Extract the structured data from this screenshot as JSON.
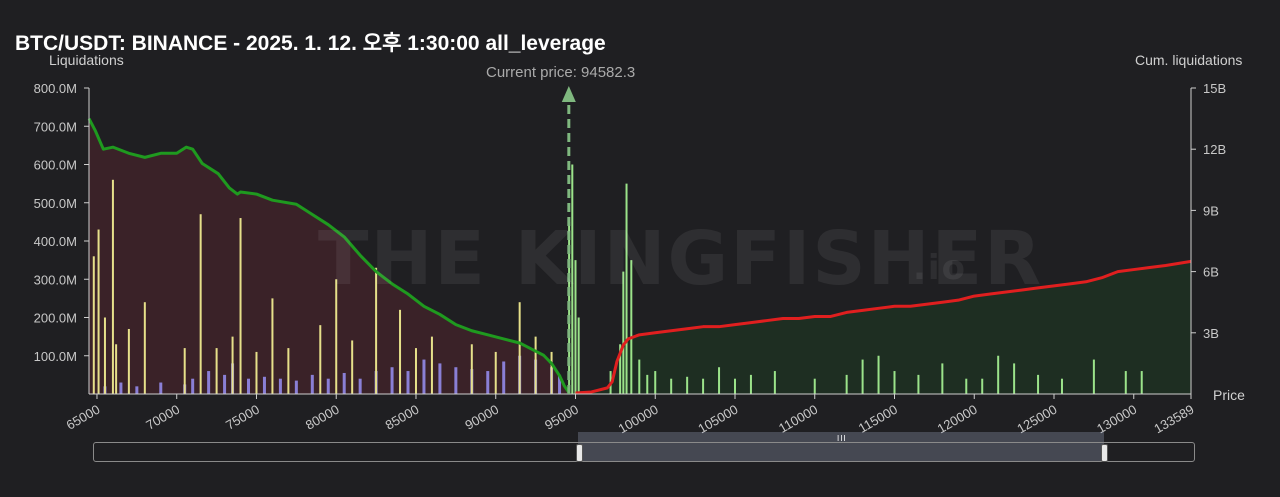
{
  "header": {
    "title": "BTC/USDT: BINANCE - 2025. 1. 12. 오후 1:30:00 all_leverage"
  },
  "annotation": {
    "current_price": "Current price: 94582.3"
  },
  "watermark": {
    "text": "THE KINGFISHER",
    "suffix": ".io"
  },
  "colors": {
    "short_bar": "#e6e08a",
    "long_bar": "#8a7fd6",
    "right_bar": "#9be38a",
    "cum_left_line": "#1f9a1f",
    "cum_right_line": "#e01f1f",
    "fill_left": "#3a2228",
    "fill_right": "#1e2e22",
    "price_marker": "#7fb87f"
  },
  "chart_data": {
    "type": "bar",
    "title": "BTC/USDT: BINANCE - 2025. 1. 12. 오후 1:30:00 all_leverage",
    "ylabel": "Liquidations",
    "y2label": "Cum. liquidations",
    "xlabel": "Price",
    "xlim": [
      64500,
      133589
    ],
    "ylim": [
      0,
      800000000
    ],
    "y2lim": [
      0,
      15000000000
    ],
    "x_ticks": [
      "65000",
      "70000",
      "75000",
      "80000",
      "85000",
      "90000",
      "95000",
      "100000",
      "105000",
      "110000",
      "115000",
      "120000",
      "125000",
      "130000",
      "133589"
    ],
    "y_ticks": [
      "100.0M",
      "200.0M",
      "300.0M",
      "400.0M",
      "500.0M",
      "600.0M",
      "700.0M",
      "800.0M"
    ],
    "y2_ticks": [
      "3B",
      "6B",
      "9B",
      "12B",
      "15B"
    ],
    "current_price": 94582.3,
    "cum_left": {
      "name": "cum_below",
      "x": [
        64500,
        64900,
        65400,
        66000,
        67000,
        68000,
        69000,
        70000,
        70600,
        71000,
        71600,
        72600,
        73300,
        73800,
        74000,
        75000,
        76000,
        77500,
        78500,
        79500,
        80500,
        81500,
        82500,
        83500,
        84500,
        85500,
        86500,
        87500,
        88500,
        89500,
        90500,
        91500,
        92000,
        92500,
        93000,
        93500,
        94000,
        94300,
        94582
      ],
      "values": [
        13500000000,
        12900000000,
        12000000000,
        12100000000,
        11800000000,
        11600000000,
        11800000000,
        11800000000,
        12100000000,
        12000000000,
        11300000000,
        10800000000,
        10100000000,
        9800000000,
        9900000000,
        9800000000,
        9500000000,
        9300000000,
        8800000000,
        8300000000,
        7700000000,
        6800000000,
        6000000000,
        5400000000,
        4900000000,
        4300000000,
        3900000000,
        3400000000,
        3100000000,
        2900000000,
        2700000000,
        2500000000,
        2300000000,
        2100000000,
        1900000000,
        1500000000,
        900000000,
        400000000,
        80000000
      ]
    },
    "cum_right": {
      "name": "cum_above",
      "x": [
        95000,
        96000,
        97000,
        97300,
        97600,
        98000,
        98300,
        99000,
        100000,
        101000,
        102000,
        103000,
        104000,
        105000,
        106000,
        107000,
        108000,
        109000,
        110000,
        111000,
        112000,
        113000,
        114000,
        115000,
        116000,
        117000,
        118000,
        119000,
        120000,
        121000,
        122000,
        123000,
        124000,
        125000,
        126000,
        127000,
        128000,
        129000,
        130000,
        131000,
        132000,
        133589
      ],
      "values": [
        50000000,
        100000000,
        300000000,
        600000000,
        1600000000,
        2400000000,
        2700000000,
        2900000000,
        3000000000,
        3100000000,
        3200000000,
        3300000000,
        3300000000,
        3400000000,
        3500000000,
        3600000000,
        3700000000,
        3700000000,
        3800000000,
        3800000000,
        4000000000,
        4100000000,
        4200000000,
        4300000000,
        4300000000,
        4400000000,
        4500000000,
        4600000000,
        4800000000,
        4900000000,
        5000000000,
        5100000000,
        5200000000,
        5300000000,
        5400000000,
        5500000000,
        5700000000,
        6000000000,
        6100000000,
        6200000000,
        6300000000,
        6500000000
      ]
    },
    "bars_short": {
      "name": "short_liq",
      "x": [
        64800,
        65100,
        65500,
        66000,
        66200,
        67000,
        68000,
        70500,
        71500,
        72500,
        73500,
        74000,
        75000,
        76000,
        77000,
        79000,
        80000,
        81000,
        82500,
        84000,
        85000,
        86000,
        88500,
        90000,
        91500,
        92500,
        93500
      ],
      "values": [
        360000000,
        430000000,
        200000000,
        560000000,
        130000000,
        170000000,
        240000000,
        120000000,
        470000000,
        120000000,
        150000000,
        460000000,
        110000000,
        250000000,
        120000000,
        180000000,
        300000000,
        140000000,
        330000000,
        220000000,
        120000000,
        150000000,
        130000000,
        110000000,
        240000000,
        150000000,
        110000000
      ]
    },
    "bars_long": {
      "name": "long_liq",
      "x": [
        65500,
        66500,
        67500,
        69000,
        70500,
        71000,
        72000,
        73000,
        73500,
        74500,
        75500,
        76500,
        77500,
        78500,
        79500,
        80500,
        81500,
        82500,
        83500,
        84500,
        85500,
        86500,
        87500,
        88500,
        89500,
        90500,
        91500,
        92500,
        93500,
        94000
      ],
      "values": [
        20000000,
        30000000,
        20000000,
        30000000,
        25000000,
        40000000,
        60000000,
        50000000,
        80000000,
        40000000,
        45000000,
        40000000,
        35000000,
        50000000,
        40000000,
        55000000,
        40000000,
        60000000,
        70000000,
        60000000,
        90000000,
        80000000,
        70000000,
        65000000,
        60000000,
        85000000,
        100000000,
        90000000,
        70000000,
        50000000
      ]
    },
    "bars_right": {
      "name": "short_above",
      "x": [
        94600,
        94800,
        95000,
        95200,
        97200,
        97800,
        98000,
        98200,
        98500,
        99000,
        99500,
        100000,
        101000,
        102000,
        103000,
        104000,
        105000,
        106000,
        107500,
        110000,
        112000,
        113000,
        114000,
        115000,
        116500,
        118000,
        119500,
        120500,
        121500,
        122500,
        124000,
        125500,
        127500,
        129500,
        130500
      ],
      "values": [
        450000000,
        600000000,
        350000000,
        200000000,
        60000000,
        130000000,
        320000000,
        550000000,
        350000000,
        90000000,
        50000000,
        60000000,
        40000000,
        45000000,
        40000000,
        70000000,
        40000000,
        50000000,
        60000000,
        40000000,
        50000000,
        90000000,
        100000000,
        60000000,
        50000000,
        80000000,
        40000000,
        40000000,
        100000000,
        80000000,
        50000000,
        40000000,
        90000000,
        60000000,
        60000000
      ]
    }
  },
  "scrollbar": {
    "grip": "III"
  }
}
